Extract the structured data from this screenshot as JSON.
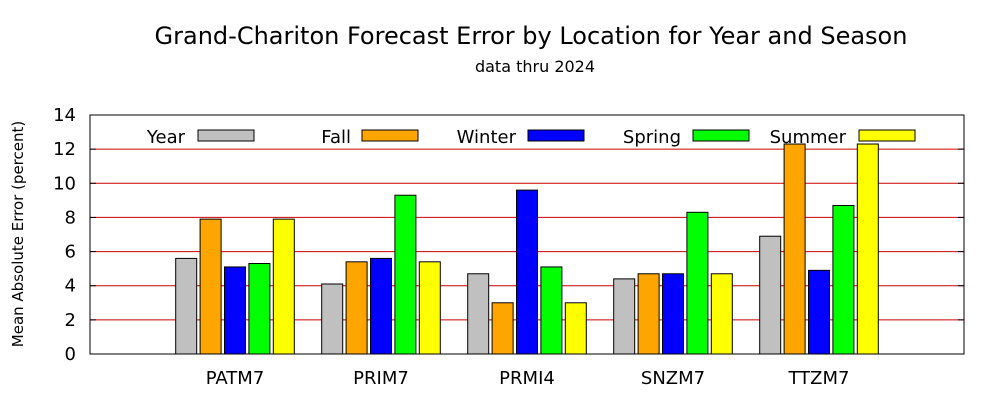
{
  "chart_data": {
    "type": "bar",
    "title": "Grand-Chariton Forecast Error by Location for Year and Season",
    "subtitle": "data thru 2024",
    "xlabel": "",
    "ylabel": "Mean Absolute Error (percent)",
    "ylim": [
      0,
      14
    ],
    "yticks": [
      0,
      2,
      4,
      6,
      8,
      10,
      12,
      14
    ],
    "grid": "horizontal",
    "grid_color": "#cc0000",
    "legend_position": "top",
    "categories": [
      "PATM7",
      "PRIM7",
      "PRMI4",
      "SNZM7",
      "TTZM7"
    ],
    "series": [
      {
        "name": "Year",
        "color": "#c0c0c0",
        "values": [
          5.6,
          4.1,
          4.7,
          4.4,
          6.9
        ]
      },
      {
        "name": "Fall",
        "color": "#ffa500",
        "values": [
          7.9,
          5.4,
          3.0,
          4.7,
          12.3
        ]
      },
      {
        "name": "Winter",
        "color": "#0000ff",
        "values": [
          5.1,
          5.6,
          9.6,
          4.7,
          4.9
        ]
      },
      {
        "name": "Spring",
        "color": "#00ff00",
        "values": [
          5.3,
          9.3,
          5.1,
          8.3,
          8.7
        ]
      },
      {
        "name": "Summer",
        "color": "#ffff00",
        "values": [
          7.9,
          5.4,
          3.0,
          4.7,
          12.3
        ]
      }
    ]
  }
}
